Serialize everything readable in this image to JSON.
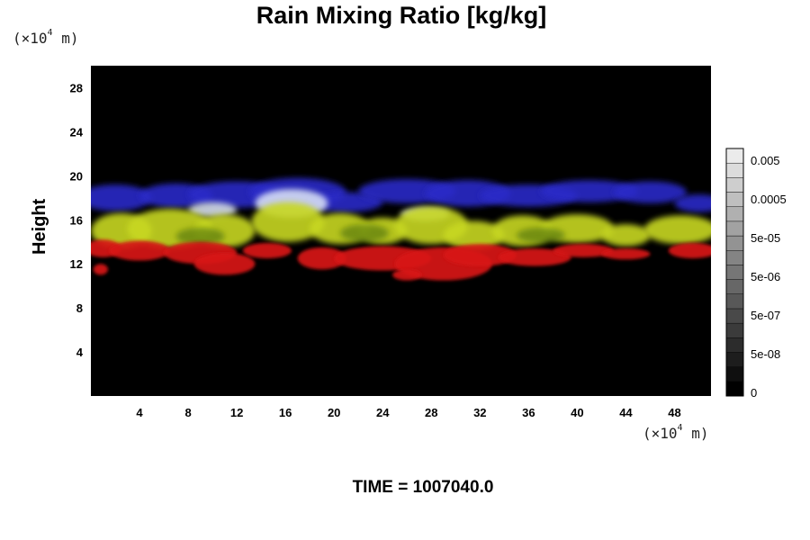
{
  "chart_data": {
    "type": "heatmap",
    "title": "Rain Mixing Ratio [kg/kg]",
    "ylabel": "Height",
    "xlabel": "",
    "y_unit_label": "(×10",
    "x_unit_label": "(×10",
    "unit_exponent": "4",
    "unit_suffix": " m)",
    "xlim": [
      0,
      51
    ],
    "ylim": [
      0,
      30
    ],
    "x_ticks": [
      4,
      8,
      12,
      16,
      20,
      24,
      28,
      32,
      36,
      40,
      44,
      48
    ],
    "y_ticks": [
      4,
      8,
      12,
      16,
      20,
      24,
      28
    ],
    "background_color": "#000000",
    "layers": [
      {
        "color": "#2a2ac8",
        "name_visible": false,
        "height_range": [
          16.5,
          19.5
        ]
      },
      {
        "color": "#e0e8f8",
        "name_visible": false,
        "height_range": [
          16,
          18.5
        ]
      },
      {
        "color": "#c8d820",
        "name_visible": false,
        "height_range": [
          13.5,
          17
        ]
      },
      {
        "color": "#d81818",
        "name_visible": false,
        "height_range": [
          10,
          14
        ]
      }
    ],
    "colorbar": {
      "labels": [
        "0.005",
        "0.0005",
        "5e-05",
        "5e-06",
        "5e-07",
        "5e-08",
        "0"
      ],
      "levels": 17
    }
  },
  "time_label": "TIME = 1007040.0"
}
